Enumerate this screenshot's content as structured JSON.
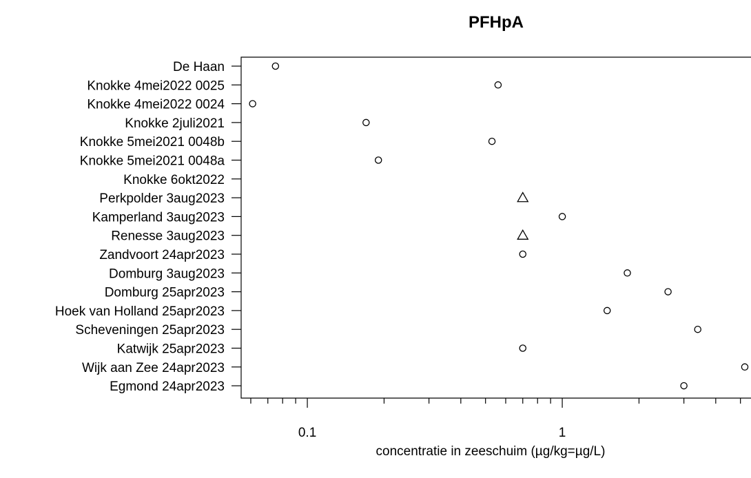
{
  "chart_data": {
    "type": "scatter",
    "title": "PFHpA",
    "xlabel": "concentratie in zeeschuim (µg/kg=µg/L)",
    "ylabel": "",
    "x_scale": "log",
    "xlim": [
      0.055,
      5.5
    ],
    "x_ticks": [
      0.1,
      1
    ],
    "x_tick_labels": [
      "0.1",
      "1"
    ],
    "grid": false,
    "categories": [
      "De Haan",
      "Knokke 4mei2022 0025",
      "Knokke 4mei2022 0024",
      "Knokke 2juli2021",
      "Knokke 5mei2021 0048b",
      "Knokke 5mei2021 0048a",
      "Knokke 6okt2022",
      "Perkpolder 3aug2023",
      "Kamperland 3aug2023",
      "Renesse 3aug2023",
      "Zandvoort 24apr2023",
      "Domburg 3aug2023",
      "Domburg 25apr2023",
      "Hoek van Holland 25apr2023",
      "Scheveningen 25apr2023",
      "Katwijk 25apr2023",
      "Wijk aan Zee 24apr2023",
      "Egmond 24apr2023"
    ],
    "points": [
      {
        "category": "De Haan",
        "value": 0.075,
        "marker": "circle"
      },
      {
        "category": "Knokke 4mei2022 0025",
        "value": 0.56,
        "marker": "circle"
      },
      {
        "category": "Knokke 4mei2022 0024",
        "value": 0.061,
        "marker": "circle"
      },
      {
        "category": "Knokke 2juli2021",
        "value": 0.17,
        "marker": "circle"
      },
      {
        "category": "Knokke 5mei2021 0048b",
        "value": 0.53,
        "marker": "circle"
      },
      {
        "category": "Knokke 5mei2021 0048a",
        "value": 0.19,
        "marker": "circle"
      },
      {
        "category": "Knokke 6okt2022",
        "value": null,
        "marker": "circle"
      },
      {
        "category": "Perkpolder 3aug2023",
        "value": 0.7,
        "marker": "triangle"
      },
      {
        "category": "Kamperland 3aug2023",
        "value": 1.0,
        "marker": "circle"
      },
      {
        "category": "Renesse 3aug2023",
        "value": 0.7,
        "marker": "triangle"
      },
      {
        "category": "Zandvoort 24apr2023",
        "value": 0.7,
        "marker": "circle"
      },
      {
        "category": "Domburg 3aug2023",
        "value": 1.8,
        "marker": "circle"
      },
      {
        "category": "Domburg 25apr2023",
        "value": 2.6,
        "marker": "circle"
      },
      {
        "category": "Hoek van Holland 25apr2023",
        "value": 1.5,
        "marker": "circle"
      },
      {
        "category": "Scheveningen 25apr2023",
        "value": 3.4,
        "marker": "circle"
      },
      {
        "category": "Katwijk 25apr2023",
        "value": 0.7,
        "marker": "circle"
      },
      {
        "category": "Wijk aan Zee 24apr2023",
        "value": 5.2,
        "marker": "circle"
      },
      {
        "category": "Egmond 24apr2023",
        "value": 3.0,
        "marker": "circle"
      }
    ]
  }
}
